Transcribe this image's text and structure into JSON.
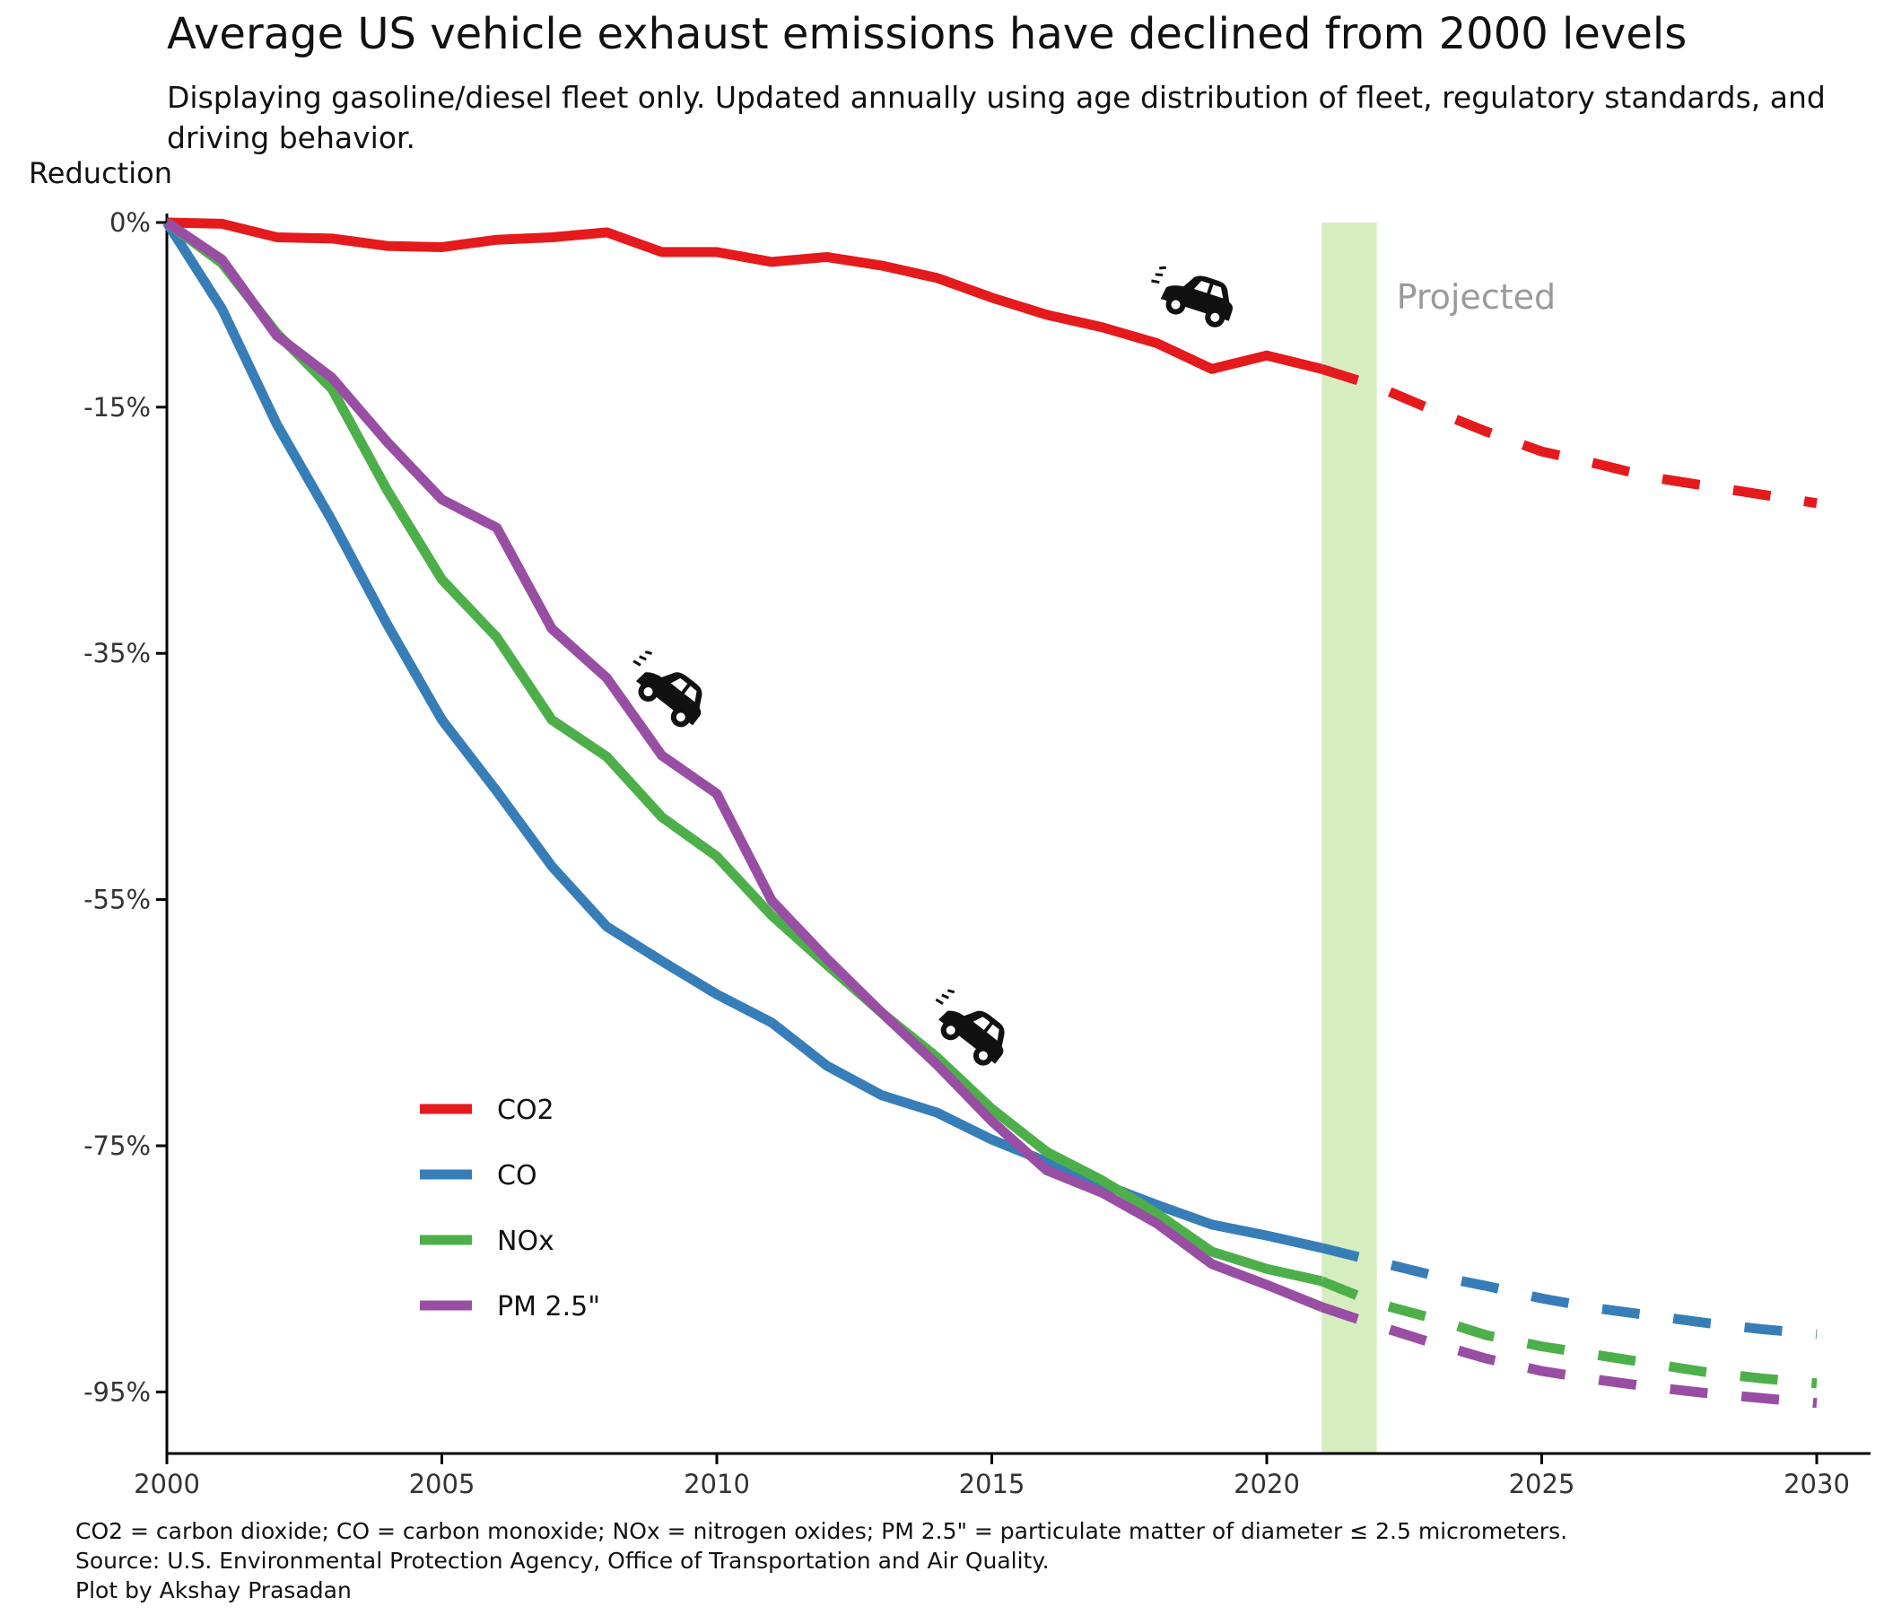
{
  "title": "Average US vehicle exhaust emissions have declined from 2000 levels",
  "subtitle": "Displaying gasoline/diesel fleet only. Updated annually using age distribution of fleet, regulatory standards, and driving behavior.",
  "caption": {
    "line1": "CO2 = carbon dioxide; CO = carbon monoxide; NOx = nitrogen oxides; PM 2.5\" = particulate matter of diameter ≤ 2.5 micrometers.",
    "line2": "Source: U.S. Environmental Protection Agency, Office of Transportation and Air Quality.",
    "line3": "Plot by Akshay Prasadan"
  },
  "icons": [
    "car-icon",
    "car-icon",
    "car-icon"
  ],
  "chart_data": {
    "type": "line",
    "ylabel": "Reduction",
    "xlabel": "",
    "xlim": [
      2000,
      2031
    ],
    "ylim": [
      -100,
      0
    ],
    "xticks": [
      2000,
      2005,
      2010,
      2015,
      2020,
      2025,
      2030
    ],
    "yticks": [
      0,
      -15,
      -35,
      -55,
      -75,
      -95
    ],
    "ytick_suffix": "%",
    "grid": false,
    "legend_position": "bottom-left",
    "projection": {
      "label": "Projected",
      "start": 2021,
      "end": 2022,
      "color": "#d6edc0"
    },
    "x": [
      2000,
      2001,
      2002,
      2003,
      2004,
      2005,
      2006,
      2007,
      2008,
      2009,
      2010,
      2011,
      2012,
      2013,
      2014,
      2015,
      2016,
      2017,
      2018,
      2019,
      2020,
      2021,
      2022,
      2023,
      2024,
      2025,
      2026,
      2027,
      2028,
      2029,
      2030
    ],
    "series": [
      {
        "name": "CO2",
        "color": "#e41a1c",
        "values": [
          0,
          -0.1,
          -1.2,
          -1.3,
          -1.9,
          -2.0,
          -1.4,
          -1.2,
          -0.8,
          -2.4,
          -2.4,
          -3.2,
          -2.8,
          -3.5,
          -4.5,
          -6.1,
          -7.5,
          -8.5,
          -9.8,
          -11.9,
          -10.8,
          -11.9,
          -13.3,
          -15.2,
          -17.0,
          -18.6,
          -19.6,
          -20.7,
          -21.4,
          -22.1,
          -22.8
        ]
      },
      {
        "name": "CO",
        "color": "#377eb8",
        "values": [
          0,
          -7.0,
          -16.4,
          -24.2,
          -32.6,
          -40.4,
          -46.2,
          -52.3,
          -57.2,
          -60.0,
          -62.7,
          -65.0,
          -68.5,
          -70.9,
          -72.3,
          -74.5,
          -76.3,
          -78.1,
          -79.8,
          -81.4,
          -82.3,
          -83.3,
          -84.4,
          -85.5,
          -86.4,
          -87.4,
          -88.2,
          -88.8,
          -89.4,
          -89.9,
          -90.3
        ]
      },
      {
        "name": "NOx",
        "color": "#4daf4a",
        "values": [
          0,
          -3.3,
          -9.0,
          -13.5,
          -21.7,
          -29.0,
          -33.7,
          -40.4,
          -43.4,
          -48.3,
          -51.5,
          -56.3,
          -60.3,
          -64.2,
          -67.8,
          -72.0,
          -75.5,
          -77.8,
          -80.5,
          -83.6,
          -85.0,
          -86.0,
          -87.8,
          -89.0,
          -90.4,
          -91.3,
          -92.0,
          -92.7,
          -93.4,
          -93.9,
          -94.3
        ]
      },
      {
        "name": "PM 2.5\"",
        "color": "#984ea3",
        "values": [
          0,
          -3.0,
          -9.2,
          -12.6,
          -17.8,
          -22.5,
          -24.8,
          -33.0,
          -37.0,
          -43.3,
          -46.4,
          -55.1,
          -59.8,
          -64.2,
          -68.4,
          -73.0,
          -77.0,
          -78.8,
          -81.3,
          -84.6,
          -86.3,
          -88.1,
          -89.6,
          -91.0,
          -92.3,
          -93.3,
          -94.0,
          -94.6,
          -95.1,
          -95.5,
          -95.9
        ]
      }
    ]
  }
}
